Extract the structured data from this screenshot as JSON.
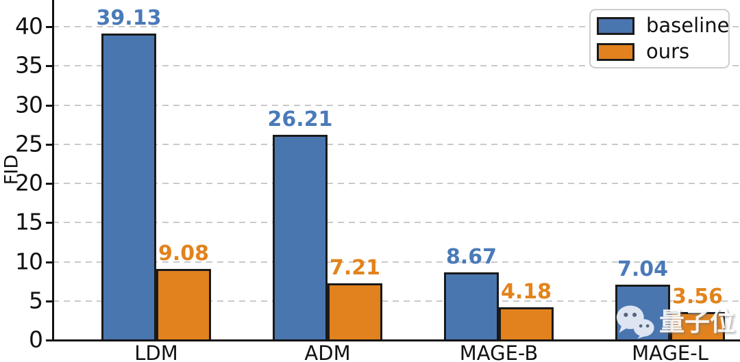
{
  "chart_data": {
    "type": "bar",
    "title": "",
    "categories": [
      "LDM",
      "ADM",
      "MAGE-B",
      "MAGE-L"
    ],
    "series": [
      {
        "name": "baseline",
        "values": [
          39.13,
          26.21,
          8.67,
          7.04
        ],
        "color": "#4a76b0",
        "label_color": "#4a7ab8"
      },
      {
        "name": "ours",
        "values": [
          9.08,
          7.21,
          4.18,
          3.56
        ],
        "color": "#e2821e",
        "label_color": "#e2831c"
      }
    ],
    "value_labels": [
      "39.13",
      "26.21",
      "8.67",
      "7.04",
      "9.08",
      "7.21",
      "4.18",
      "3.56"
    ],
    "xlabel": "",
    "ylabel": "FID",
    "ylim": [
      0,
      40
    ],
    "yticks": [
      0,
      5,
      10,
      15,
      20,
      25,
      30,
      35,
      40
    ],
    "grid": "horizontal-dashed",
    "legend_position": "upper-right",
    "bar_edge_color": "#1a1a1a"
  },
  "watermark": {
    "icon": "wechat-icon",
    "text": "量子位"
  }
}
